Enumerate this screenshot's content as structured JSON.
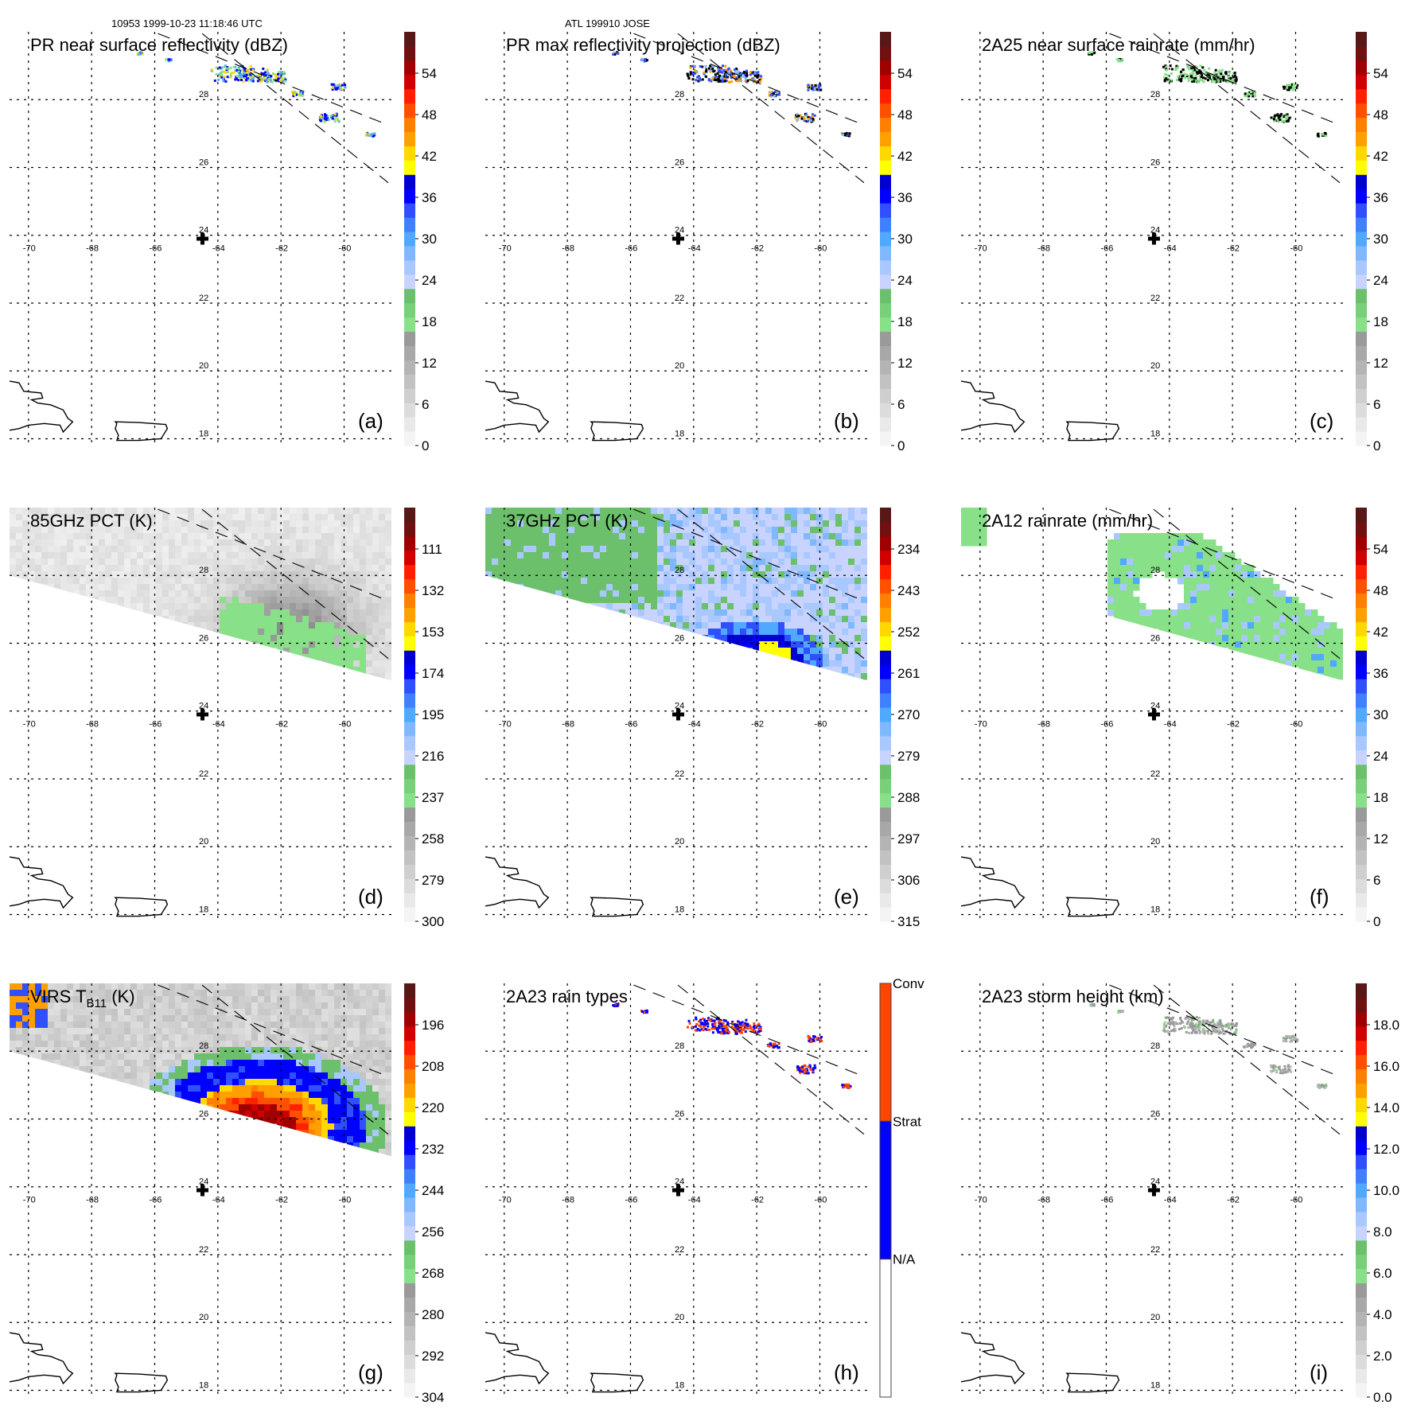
{
  "header": {
    "left": "10953 1999-10-23 11:18:46 UTC",
    "center": "ATL 199910 JOSE"
  },
  "map": {
    "lon_ticks": [
      -70,
      -68,
      -66,
      -64,
      -62,
      -60
    ],
    "lat_ticks": [
      28,
      26,
      24,
      22,
      20,
      18
    ],
    "lon_range": [
      -70.6,
      -58.5
    ],
    "lat_range": [
      17.8,
      30.0
    ],
    "storm_center": {
      "lon": -64.5,
      "lat": 23.9,
      "icon": "plus-marker-icon"
    },
    "swath_edges": "dashed",
    "coastlines": [
      "Hispaniola",
      "Puerto Rico"
    ]
  },
  "colors": {
    "rainbow": [
      "#f4f4f4",
      "#e9e9e9",
      "#dcdcdc",
      "#cfcfcf",
      "#c2c2c2",
      "#b4b4b4",
      "#a8a8a8",
      "#9a9a9a",
      "#88e088",
      "#78d078",
      "#6cc06c",
      "#c8d4ff",
      "#a8c8ff",
      "#80b8ff",
      "#50a8ff",
      "#4080ff",
      "#3050ff",
      "#0000ff",
      "#0000d0",
      "#ffff00",
      "#ffd800",
      "#ffa000",
      "#ff8000",
      "#ff5000",
      "#ff2000",
      "#d00000",
      "#a00000",
      "#701010",
      "#581818"
    ],
    "rain_types": {
      "conv": "#ff4500",
      "strat": "#0000ff",
      "na": "#ffffff"
    }
  },
  "chart_data": [
    {
      "type": "heatmap",
      "panel_label": "(a)",
      "title": "PR near surface reflectivity (dBZ)",
      "colorbar": {
        "ticks": [
          "54",
          "48",
          "42",
          "36",
          "30",
          "24",
          "18",
          "12",
          "6",
          "0"
        ],
        "range": [
          0,
          60
        ]
      },
      "feature": "sparse-swath",
      "field_range_observed": [
        18,
        45
      ]
    },
    {
      "type": "heatmap",
      "panel_label": "(b)",
      "title": "PR max reflectivity projection (dBZ)",
      "colorbar": {
        "ticks": [
          "54",
          "48",
          "42",
          "36",
          "30",
          "24",
          "18",
          "12",
          "6",
          "0"
        ],
        "range": [
          0,
          60
        ]
      },
      "feature": "sparse-swath-contoured",
      "field_range_observed": [
        18,
        45
      ]
    },
    {
      "type": "heatmap",
      "panel_label": "(c)",
      "title": "2A25 near surface rainrate (mm/hr)",
      "colorbar": {
        "ticks": [
          "54",
          "48",
          "42",
          "36",
          "30",
          "24",
          "18",
          "12",
          "6",
          "0"
        ],
        "range": [
          0,
          60
        ]
      },
      "feature": "sparse-swath-contoured",
      "field_range_observed": [
        0,
        6
      ]
    },
    {
      "type": "heatmap",
      "panel_label": "(d)",
      "title": "85GHz PCT (K)",
      "colorbar": {
        "ticks": [
          "111",
          "132",
          "153",
          "174",
          "195",
          "216",
          "237",
          "258",
          "279",
          "300"
        ],
        "range": [
          300,
          90
        ]
      },
      "feature": "tmi-swath-grey",
      "field_range_observed": [
        230,
        300
      ]
    },
    {
      "type": "heatmap",
      "panel_label": "(e)",
      "title": "37GHz PCT (K)",
      "colorbar": {
        "ticks": [
          "234",
          "243",
          "252",
          "261",
          "270",
          "279",
          "288",
          "297",
          "306",
          "315"
        ],
        "range": [
          315,
          225
        ]
      },
      "feature": "tmi-swath-blue",
      "field_range_observed": [
        258,
        290
      ]
    },
    {
      "type": "heatmap",
      "panel_label": "(f)",
      "title": "2A12 rainrate (mm/hr)",
      "colorbar": {
        "ticks": [
          "54",
          "48",
          "42",
          "36",
          "30",
          "24",
          "18",
          "12",
          "6",
          "0"
        ],
        "range": [
          0,
          60
        ]
      },
      "feature": "tmi-swath-rain",
      "field_range_observed": [
        0,
        12
      ]
    },
    {
      "type": "heatmap",
      "panel_label": "(g)",
      "title": "VIRS T",
      "title_sub": "B11",
      "title_suffix": " (K)",
      "colorbar": {
        "ticks": [
          "196",
          "208",
          "220",
          "232",
          "244",
          "256",
          "268",
          "280",
          "292",
          "304"
        ],
        "range": [
          304,
          184
        ]
      },
      "feature": "virs-swath",
      "field_range_observed": [
        190,
        300
      ]
    },
    {
      "type": "heatmap",
      "panel_label": "(h)",
      "title": "2A23 rain types",
      "colorbar": {
        "categorical": true,
        "labels": [
          "Conv",
          "Strat",
          "N/A"
        ]
      },
      "feature": "sparse-swath-types"
    },
    {
      "type": "heatmap",
      "panel_label": "(i)",
      "title": "2A23 storm height (km)",
      "colorbar": {
        "ticks": [
          "18.0",
          "16.0",
          "14.0",
          "12.0",
          "10.0",
          "8.0",
          "6.0",
          "4.0",
          "2.0",
          "0.0"
        ],
        "range": [
          0,
          20
        ]
      },
      "feature": "sparse-swath-height",
      "field_range_observed": [
        3,
        7
      ]
    }
  ]
}
